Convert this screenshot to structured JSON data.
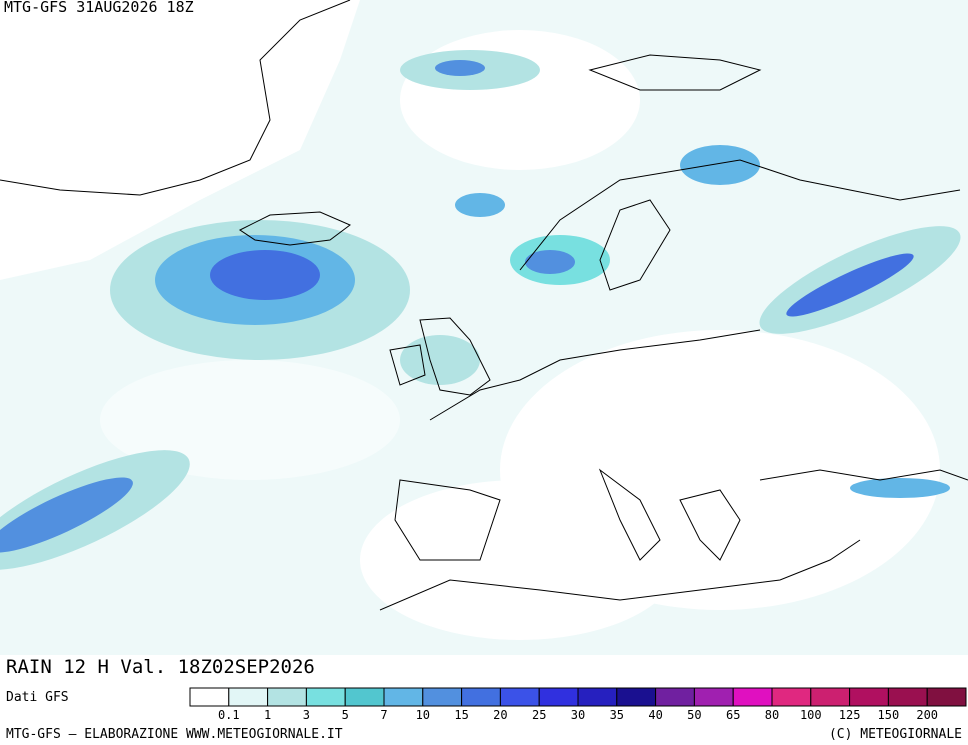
{
  "header": {
    "title": "MTG-GFS 31AUG2026 18Z"
  },
  "map": {
    "caption": "RAIN 12 H Val. 18Z02SEP2026"
  },
  "legend": {
    "source": "Dati GFS",
    "colors": [
      "#ffffff",
      "#e2f6f6",
      "#b3e3e3",
      "#78e0e0",
      "#52c6cf",
      "#62b6e6",
      "#5290df",
      "#4270e0",
      "#3b52e8",
      "#3030df",
      "#2620bf",
      "#1a1090",
      "#7020a0",
      "#a020b0",
      "#e010c0",
      "#e02880",
      "#cc2070",
      "#b01060",
      "#9a1050",
      "#801040"
    ],
    "labels": [
      0.1,
      1,
      3,
      5,
      7,
      10,
      15,
      20,
      25,
      30,
      35,
      40,
      50,
      65,
      80,
      100,
      125,
      150,
      200
    ]
  },
  "footer": {
    "left": "MTG-GFS — ELABORAZIONE WWW.METEOGIORNALE.IT",
    "right": "(C) METEOGIORNALE"
  }
}
